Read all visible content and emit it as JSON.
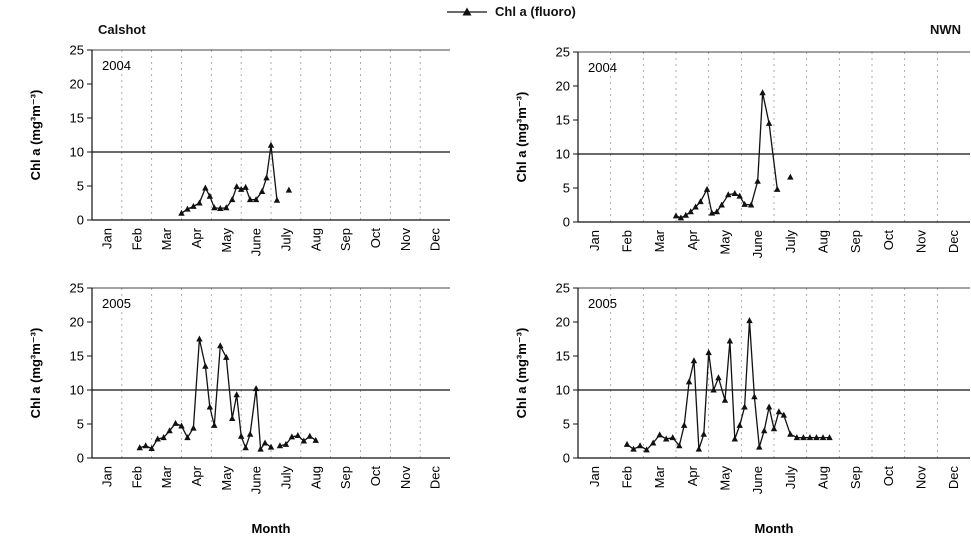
{
  "legend": {
    "label": "Chl a (fluoro)"
  },
  "sites": {
    "left": "Calshot",
    "right": "NWN"
  },
  "threshold": 10,
  "chart_data": [
    {
      "type": "line",
      "site": "Calshot",
      "year": "2004",
      "ylabel": "Chl a (mg³m⁻³)",
      "xlabel": "",
      "ylim": [
        0,
        25
      ],
      "yticks": [
        0,
        5,
        10,
        15,
        20,
        25
      ],
      "categories": [
        "Jan",
        "Feb",
        "Mar",
        "Apr",
        "May",
        "June",
        "July",
        "Aug",
        "Sep",
        "Oct",
        "Nov",
        "Dec"
      ],
      "reference_line": 10,
      "series": [
        {
          "x": [
            3.0,
            3.2,
            3.4,
            3.6,
            3.8,
            3.95,
            4.1,
            4.3,
            4.5,
            4.7,
            4.85,
            5.0,
            5.15,
            5.3,
            5.5,
            5.7,
            5.85,
            6.0,
            6.2
          ],
          "values": [
            1.0,
            1.6,
            2.0,
            2.5,
            4.7,
            3.5,
            1.8,
            1.7,
            1.8,
            3.0,
            4.9,
            4.5,
            4.8,
            3.0,
            3.0,
            4.2,
            6.2,
            11.0,
            2.9
          ]
        },
        {
          "x": [
            6.6
          ],
          "values": [
            4.4
          ]
        }
      ]
    },
    {
      "type": "line",
      "site": "NWN",
      "year": "2004",
      "ylabel": "Chl a (mg³m⁻³)",
      "xlabel": "",
      "ylim": [
        0,
        25
      ],
      "yticks": [
        0,
        5,
        10,
        15,
        20,
        25
      ],
      "categories": [
        "Jan",
        "Feb",
        "Mar",
        "Apr",
        "May",
        "June",
        "July",
        "Aug",
        "Sep",
        "Oct",
        "Nov",
        "Dec"
      ],
      "reference_line": 10,
      "series": [
        {
          "x": [
            3.0,
            3.15,
            3.3,
            3.45,
            3.6,
            3.75,
            3.95,
            4.1,
            4.25,
            4.4,
            4.6,
            4.8,
            4.95,
            5.1,
            5.3,
            5.5,
            5.65,
            5.85,
            6.1
          ],
          "values": [
            0.9,
            0.6,
            1.0,
            1.5,
            2.2,
            3.0,
            4.8,
            1.3,
            1.5,
            2.5,
            4.0,
            4.2,
            3.8,
            2.6,
            2.5,
            6.0,
            19.0,
            14.5,
            4.8
          ]
        },
        {
          "x": [
            6.5
          ],
          "values": [
            6.6
          ]
        }
      ]
    },
    {
      "type": "line",
      "site": "Calshot",
      "year": "2005",
      "ylabel": "Chl a (mg³m⁻³)",
      "xlabel": "Month",
      "ylim": [
        0,
        25
      ],
      "yticks": [
        0,
        5,
        10,
        15,
        20,
        25
      ],
      "categories": [
        "Jan",
        "Feb",
        "Mar",
        "Apr",
        "May",
        "June",
        "July",
        "Aug",
        "Sep",
        "Oct",
        "Nov",
        "Dec"
      ],
      "reference_line": 10,
      "series": [
        {
          "x": [
            1.6,
            1.8,
            2.0,
            2.2,
            2.4,
            2.6,
            2.8,
            3.0,
            3.2,
            3.4,
            3.6,
            3.8,
            3.95,
            4.1,
            4.3,
            4.5,
            4.7,
            4.85,
            5.0,
            5.15,
            5.3,
            5.5,
            5.65,
            5.8,
            6.0
          ],
          "values": [
            1.5,
            1.8,
            1.4,
            2.8,
            3.0,
            4.0,
            5.1,
            4.7,
            3.0,
            4.4,
            17.5,
            13.5,
            7.5,
            4.8,
            16.5,
            14.8,
            5.8,
            9.3,
            3.2,
            1.5,
            3.5,
            10.2,
            1.3,
            2.2,
            1.6
          ]
        },
        {
          "x": [
            6.3,
            6.5,
            6.7,
            6.9,
            7.1,
            7.3,
            7.5
          ],
          "values": [
            1.8,
            2.0,
            3.1,
            3.3,
            2.5,
            3.2,
            2.6
          ]
        }
      ]
    },
    {
      "type": "line",
      "site": "NWN",
      "year": "2005",
      "ylabel": "Chl a (mg³m⁻³)",
      "xlabel": "Month",
      "ylim": [
        0,
        25
      ],
      "yticks": [
        0,
        5,
        10,
        15,
        20,
        25
      ],
      "categories": [
        "Jan",
        "Feb",
        "Mar",
        "Apr",
        "May",
        "June",
        "July",
        "Aug",
        "Sep",
        "Oct",
        "Nov",
        "Dec"
      ],
      "reference_line": 10,
      "series": [
        {
          "x": [
            1.5,
            1.7,
            1.9,
            2.1,
            2.3,
            2.5,
            2.7,
            2.9,
            3.1,
            3.25,
            3.4,
            3.55,
            3.7,
            3.85,
            4.0,
            4.15,
            4.3,
            4.5,
            4.65,
            4.8,
            4.95,
            5.1,
            5.25,
            5.4,
            5.55,
            5.7,
            5.85,
            6.0,
            6.15,
            6.3,
            6.5,
            6.7,
            6.9,
            7.1,
            7.3,
            7.5,
            7.7
          ],
          "values": [
            2.0,
            1.3,
            1.8,
            1.2,
            2.2,
            3.4,
            2.8,
            3.0,
            1.8,
            4.8,
            11.2,
            14.3,
            1.3,
            3.5,
            15.5,
            10.0,
            11.8,
            8.5,
            17.2,
            2.8,
            4.8,
            7.5,
            20.2,
            9.0,
            1.6,
            4.0,
            7.5,
            4.3,
            6.8,
            6.3,
            3.5,
            3.0,
            3.0,
            3.0,
            3.0,
            3.0,
            3.0
          ]
        }
      ]
    }
  ]
}
